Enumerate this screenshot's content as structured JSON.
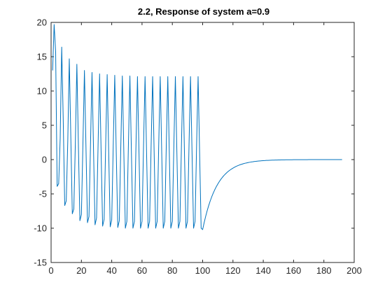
{
  "chart_data": {
    "type": "line",
    "title": "2.2, Response of system a=0.9",
    "xlabel": "",
    "ylabel": "",
    "xlim": [
      0,
      200
    ],
    "ylim": [
      -15,
      20
    ],
    "xticks": [
      "0",
      "20",
      "40",
      "60",
      "80",
      "100",
      "120",
      "140",
      "160",
      "180",
      "200"
    ],
    "yticks": [
      "-15",
      "-10",
      "-5",
      "0",
      "5",
      "10",
      "15",
      "20"
    ],
    "grid": false,
    "legend": "none",
    "line_color": "#0072BD",
    "series": [
      {
        "x": [
          1,
          2,
          3,
          4,
          5,
          6,
          7,
          8,
          9,
          10,
          11,
          12,
          13,
          14,
          15,
          16,
          17,
          18,
          19,
          20,
          21,
          22,
          23,
          24,
          25,
          26,
          27,
          28,
          29,
          30,
          31,
          32,
          33,
          34,
          35,
          36,
          37,
          38,
          39,
          40,
          41,
          42,
          43,
          44,
          45,
          46,
          47,
          48,
          49,
          50,
          51,
          52,
          53,
          54,
          55,
          56,
          57,
          58,
          59,
          60,
          61,
          62,
          63,
          64,
          65,
          66,
          67,
          68,
          69,
          70,
          71,
          72,
          73,
          74,
          75,
          76,
          77,
          78,
          79,
          80,
          81,
          82,
          83,
          84,
          85,
          86,
          87,
          88,
          89,
          90,
          91,
          92,
          93,
          94,
          95,
          96,
          97,
          98,
          99,
          100,
          101,
          102,
          103,
          104,
          105,
          106,
          107,
          108,
          109,
          110,
          111,
          112,
          113,
          114,
          115,
          116,
          117,
          118,
          119,
          120,
          121,
          122,
          123,
          124,
          125,
          126,
          127,
          128,
          129,
          130,
          131,
          132,
          133,
          134,
          135,
          136,
          137,
          138,
          139,
          140,
          141,
          142,
          143,
          144,
          145,
          146,
          147,
          148,
          149,
          150,
          151,
          152,
          153,
          154,
          155,
          156,
          157,
          158,
          159,
          160,
          161,
          162,
          163,
          164,
          165,
          166,
          167,
          168,
          169,
          170,
          171,
          172,
          173,
          174,
          175,
          176,
          177,
          178,
          179,
          180,
          181,
          182,
          183,
          184,
          185,
          186,
          187,
          188,
          189,
          190,
          191,
          192
        ],
        "y": [
          13,
          19.7,
          15.7,
          -3.9,
          -3.5,
          3.1,
          16.4,
          5.9,
          -6.7,
          -6.0,
          2.6,
          14.7,
          3.4,
          -7.9,
          -7.2,
          2.4,
          13.9,
          2.3,
          -8.9,
          -8.0,
          2.3,
          13.0,
          1.9,
          -9.2,
          -8.3,
          2.2,
          12.7,
          1.4,
          -9.5,
          -8.5,
          2.1,
          12.5,
          1.2,
          -9.7,
          -8.7,
          2.0,
          12.4,
          1.1,
          -9.8,
          -8.8,
          2.0,
          12.3,
          1.0,
          -9.9,
          -8.9,
          2.0,
          12.2,
          1.0,
          -10,
          -9.0,
          2.0,
          12.2,
          1.0,
          -10,
          -9.0,
          2.0,
          12.1,
          1.0,
          -10,
          -9.0,
          2.0,
          12.1,
          1.0,
          -10,
          -9.0,
          2.0,
          12.1,
          1.0,
          -10,
          -9.0,
          2.0,
          12.1,
          1.0,
          -10,
          -9.0,
          2.0,
          12.1,
          1.0,
          -10,
          -9.0,
          2.0,
          12.1,
          1.0,
          -10,
          -9.0,
          2.0,
          12.1,
          1.0,
          -10,
          -9.0,
          2.0,
          12.1,
          1.0,
          -10,
          -9.0,
          2.0,
          12.1,
          1.0,
          -10,
          -10.2,
          -9.18,
          -8.26,
          -7.44,
          -6.69,
          -6.02,
          -5.42,
          -4.88,
          -4.39,
          -3.95,
          -3.56,
          -3.2,
          -2.88,
          -2.59,
          -2.33,
          -2.1,
          -1.89,
          -1.7,
          -1.53,
          -1.38,
          -1.24,
          -1.12,
          -1.0,
          -0.9,
          -0.81,
          -0.73,
          -0.66,
          -0.59,
          -0.53,
          -0.48,
          -0.43,
          -0.39,
          -0.35,
          -0.32,
          -0.28,
          -0.26,
          -0.23,
          -0.21,
          -0.19,
          -0.17,
          -0.15,
          -0.14,
          -0.12,
          -0.11,
          -0.1,
          -0.09,
          -0.08,
          -0.07,
          -0.065,
          -0.058,
          -0.052,
          -0.047,
          -0.042,
          -0.038,
          -0.034,
          -0.031,
          -0.028,
          -0.025,
          -0.022,
          -0.02,
          -0.018,
          -0.016,
          -0.015,
          -0.013,
          -0.012,
          -0.011,
          -0.01,
          -0.009,
          -0.008,
          -0.007,
          -0.006,
          -0.006,
          -0.005,
          -0.005,
          -0.004,
          -0.004,
          -0.003,
          -0.003,
          -0.003,
          -0.002,
          -0.002,
          -0.002,
          -0.002,
          -0.001,
          -0.001,
          -0.001,
          -0.001,
          -0.001,
          -0.001,
          -0.001,
          -0.001,
          0,
          0
        ]
      }
    ]
  }
}
